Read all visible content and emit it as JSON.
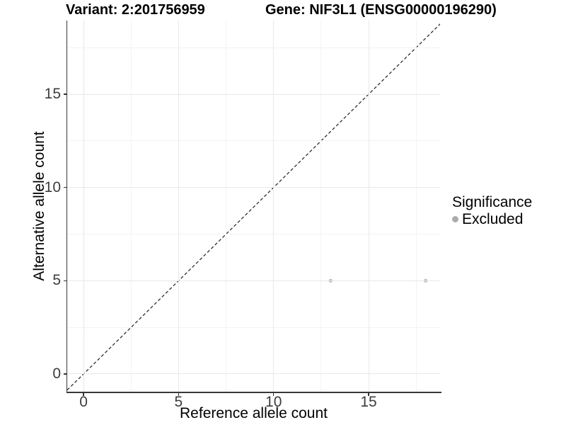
{
  "header": {
    "variant_title": "Variant: 2:201756959",
    "gene_title": "Gene: NIF3L1 (ENSG00000196290)"
  },
  "chart_data": {
    "type": "scatter",
    "title_left": "Variant: 2:201756959",
    "title_right": "Gene: NIF3L1 (ENSG00000196290)",
    "xlabel": "Reference allele count",
    "ylabel": "Alternative allele count",
    "xlim": [
      -0.86,
      18.76
    ],
    "ylim": [
      -0.95,
      18.95
    ],
    "x_ticks": [
      0,
      5,
      10,
      15
    ],
    "y_ticks": [
      0,
      5,
      10,
      15
    ],
    "x_minor_ticks": [
      2.5,
      7.5,
      12.5,
      17.5
    ],
    "y_minor_ticks": [
      2.5,
      7.5,
      12.5,
      17.5
    ],
    "grid": true,
    "series": [
      {
        "name": "Excluded",
        "color": "#bdbdbd",
        "point_radius": 2.6,
        "points": [
          {
            "x": 13,
            "y": 5
          },
          {
            "x": 18,
            "y": 5
          }
        ]
      }
    ],
    "reference_line": {
      "type": "identity",
      "slope": 1,
      "intercept": 0,
      "style": "dashed",
      "color": "#2a2a2a"
    },
    "legend": {
      "position": "right",
      "title": "Significance",
      "entries": [
        {
          "label": "Excluded",
          "color": "#ababab"
        }
      ]
    }
  },
  "colors": {
    "background": "#ffffff",
    "grid_major": "#e8e8e8",
    "grid_minor": "#f3f3f3",
    "axis_line": "#383838",
    "tick_text": "#3d3d3d",
    "point": "#bdbdbd"
  }
}
